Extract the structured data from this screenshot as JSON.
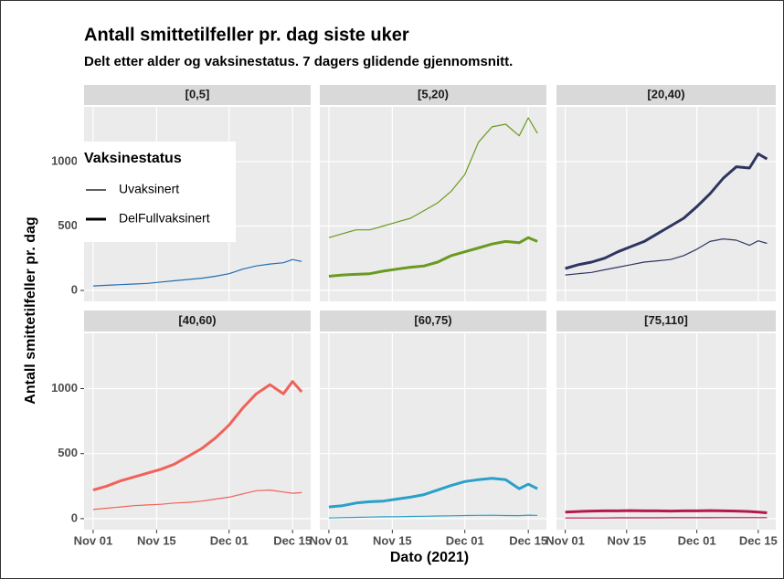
{
  "title": "Antall smittetilfeller pr. dag siste uker",
  "subtitle": "Delt etter alder og vaksinestatus. 7 dagers glidende gjennomsnitt.",
  "x_label": "Dato (2021)",
  "y_label": "Antall smittetilfeller pr. dag",
  "legend_title": "Vaksinestatus",
  "chart_data": [
    {
      "type": "line",
      "title": "[0,5]",
      "color": "#1f6fb5",
      "grid": true,
      "x": [
        "2021-11-01",
        "2021-11-04",
        "2021-11-07",
        "2021-11-10",
        "2021-11-13",
        "2021-11-16",
        "2021-11-19",
        "2021-11-22",
        "2021-11-25",
        "2021-11-28",
        "2021-12-01",
        "2021-12-04",
        "2021-12-07",
        "2021-12-10",
        "2021-12-13",
        "2021-12-15",
        "2021-12-17"
      ],
      "series": [
        {
          "name": "Uvaksinert",
          "width": 1.2,
          "values": [
            35,
            40,
            45,
            50,
            55,
            65,
            75,
            85,
            95,
            110,
            130,
            165,
            190,
            205,
            215,
            240,
            225
          ]
        }
      ],
      "xlim": [
        "2021-10-30",
        "2021-12-19"
      ],
      "ylim": [
        -85,
        1425
      ],
      "yticks": [
        0,
        500,
        1000
      ],
      "xticks": [
        {
          "value": "2021-11-01",
          "label": "Nov 01"
        },
        {
          "value": "2021-11-15",
          "label": "Nov 15"
        },
        {
          "value": "2021-12-01",
          "label": "Dec 01"
        },
        {
          "value": "2021-12-15",
          "label": "Dec 15"
        }
      ]
    },
    {
      "type": "line",
      "title": "[5,20)",
      "color": "#6a9a1f",
      "grid": true,
      "x": [
        "2021-11-01",
        "2021-11-04",
        "2021-11-07",
        "2021-11-10",
        "2021-11-13",
        "2021-11-16",
        "2021-11-19",
        "2021-11-22",
        "2021-11-25",
        "2021-11-28",
        "2021-12-01",
        "2021-12-04",
        "2021-12-07",
        "2021-12-10",
        "2021-12-13",
        "2021-12-15",
        "2021-12-17"
      ],
      "series": [
        {
          "name": "Uvaksinert",
          "width": 1.2,
          "values": [
            410,
            440,
            470,
            470,
            500,
            530,
            560,
            620,
            680,
            770,
            900,
            1150,
            1270,
            1290,
            1200,
            1340,
            1220
          ]
        },
        {
          "name": "DelFullvaksinert",
          "width": 3,
          "values": [
            110,
            120,
            125,
            130,
            150,
            165,
            180,
            190,
            220,
            270,
            300,
            330,
            360,
            380,
            370,
            410,
            380
          ]
        }
      ],
      "xlim": [
        "2021-10-30",
        "2021-12-19"
      ],
      "ylim": [
        -85,
        1425
      ],
      "yticks": [
        0,
        500,
        1000
      ],
      "xticks": [
        {
          "value": "2021-11-01",
          "label": "Nov 01"
        },
        {
          "value": "2021-11-15",
          "label": "Nov 15"
        },
        {
          "value": "2021-12-01",
          "label": "Dec 01"
        },
        {
          "value": "2021-12-15",
          "label": "Dec 15"
        }
      ]
    },
    {
      "type": "line",
      "title": "[20,40)",
      "color": "#2e3560",
      "grid": true,
      "x": [
        "2021-11-01",
        "2021-11-04",
        "2021-11-07",
        "2021-11-10",
        "2021-11-13",
        "2021-11-16",
        "2021-11-19",
        "2021-11-22",
        "2021-11-25",
        "2021-11-28",
        "2021-12-01",
        "2021-12-04",
        "2021-12-07",
        "2021-12-10",
        "2021-12-13",
        "2021-12-15",
        "2021-12-17"
      ],
      "series": [
        {
          "name": "Uvaksinert",
          "width": 1.2,
          "values": [
            120,
            130,
            140,
            160,
            180,
            200,
            220,
            230,
            240,
            270,
            320,
            380,
            400,
            390,
            350,
            385,
            365
          ]
        },
        {
          "name": "DelFullvaksinert",
          "width": 3,
          "values": [
            170,
            200,
            220,
            250,
            300,
            340,
            380,
            440,
            500,
            560,
            650,
            750,
            870,
            960,
            950,
            1060,
            1020
          ]
        }
      ],
      "xlim": [
        "2021-10-30",
        "2021-12-19"
      ],
      "ylim": [
        -85,
        1425
      ],
      "yticks": [
        0,
        500,
        1000
      ],
      "xticks": [
        {
          "value": "2021-11-01",
          "label": "Nov 01"
        },
        {
          "value": "2021-11-15",
          "label": "Nov 15"
        },
        {
          "value": "2021-12-01",
          "label": "Dec 01"
        },
        {
          "value": "2021-12-15",
          "label": "Dec 15"
        }
      ]
    },
    {
      "type": "line",
      "title": "[40,60)",
      "color": "#f0625a",
      "grid": true,
      "x": [
        "2021-11-01",
        "2021-11-04",
        "2021-11-07",
        "2021-11-10",
        "2021-11-13",
        "2021-11-16",
        "2021-11-19",
        "2021-11-22",
        "2021-11-25",
        "2021-11-28",
        "2021-12-01",
        "2021-12-04",
        "2021-12-07",
        "2021-12-10",
        "2021-12-13",
        "2021-12-15",
        "2021-12-17"
      ],
      "series": [
        {
          "name": "Uvaksinert",
          "width": 1.2,
          "values": [
            70,
            80,
            90,
            100,
            105,
            110,
            120,
            125,
            135,
            150,
            165,
            190,
            215,
            220,
            205,
            195,
            200
          ]
        },
        {
          "name": "DelFullvaksinert",
          "width": 3,
          "values": [
            220,
            250,
            290,
            320,
            350,
            380,
            420,
            480,
            540,
            620,
            720,
            850,
            960,
            1030,
            960,
            1055,
            975
          ]
        }
      ],
      "xlim": [
        "2021-10-30",
        "2021-12-19"
      ],
      "ylim": [
        -85,
        1425
      ],
      "yticks": [
        0,
        500,
        1000
      ],
      "xticks": [
        {
          "value": "2021-11-01",
          "label": "Nov 01"
        },
        {
          "value": "2021-11-15",
          "label": "Nov 15"
        },
        {
          "value": "2021-12-01",
          "label": "Dec 01"
        },
        {
          "value": "2021-12-15",
          "label": "Dec 15"
        }
      ]
    },
    {
      "type": "line",
      "title": "[60,75)",
      "color": "#2aa0c8",
      "grid": true,
      "x": [
        "2021-11-01",
        "2021-11-04",
        "2021-11-07",
        "2021-11-10",
        "2021-11-13",
        "2021-11-16",
        "2021-11-19",
        "2021-11-22",
        "2021-11-25",
        "2021-11-28",
        "2021-12-01",
        "2021-12-04",
        "2021-12-07",
        "2021-12-10",
        "2021-12-13",
        "2021-12-15",
        "2021-12-17"
      ],
      "series": [
        {
          "name": "Uvaksinert",
          "width": 1.2,
          "values": [
            5,
            8,
            10,
            12,
            14,
            15,
            17,
            18,
            20,
            22,
            24,
            25,
            26,
            24,
            23,
            27,
            25
          ]
        },
        {
          "name": "DelFullvaksinert",
          "width": 3,
          "values": [
            90,
            100,
            120,
            130,
            135,
            150,
            165,
            185,
            220,
            255,
            285,
            300,
            310,
            300,
            230,
            265,
            230
          ]
        }
      ],
      "xlim": [
        "2021-10-30",
        "2021-12-19"
      ],
      "ylim": [
        -85,
        1425
      ],
      "yticks": [
        0,
        500,
        1000
      ],
      "xticks": [
        {
          "value": "2021-11-01",
          "label": "Nov 01"
        },
        {
          "value": "2021-11-15",
          "label": "Nov 15"
        },
        {
          "value": "2021-12-01",
          "label": "Dec 01"
        },
        {
          "value": "2021-12-15",
          "label": "Dec 15"
        }
      ]
    },
    {
      "type": "line",
      "title": "[75,110]",
      "color": "#b5194b",
      "grid": true,
      "x": [
        "2021-11-01",
        "2021-11-04",
        "2021-11-07",
        "2021-11-10",
        "2021-11-13",
        "2021-11-16",
        "2021-11-19",
        "2021-11-22",
        "2021-11-25",
        "2021-11-28",
        "2021-12-01",
        "2021-12-04",
        "2021-12-07",
        "2021-12-10",
        "2021-12-13",
        "2021-12-15",
        "2021-12-17"
      ],
      "series": [
        {
          "name": "Uvaksinert",
          "width": 1.2,
          "values": [
            5,
            5,
            5,
            5,
            6,
            6,
            6,
            6,
            7,
            7,
            7,
            7,
            8,
            8,
            8,
            8,
            8
          ]
        },
        {
          "name": "DelFullvaksinert",
          "width": 3,
          "values": [
            50,
            55,
            58,
            60,
            60,
            62,
            60,
            60,
            58,
            60,
            60,
            62,
            60,
            58,
            55,
            50,
            45
          ]
        }
      ],
      "xlim": [
        "2021-10-30",
        "2021-12-19"
      ],
      "ylim": [
        -85,
        1425
      ],
      "yticks": [
        0,
        500,
        1000
      ],
      "xticks": [
        {
          "value": "2021-11-01",
          "label": "Nov 01"
        },
        {
          "value": "2021-11-15",
          "label": "Nov 15"
        },
        {
          "value": "2021-12-01",
          "label": "Dec 01"
        },
        {
          "value": "2021-12-15",
          "label": "Dec 15"
        }
      ]
    }
  ]
}
